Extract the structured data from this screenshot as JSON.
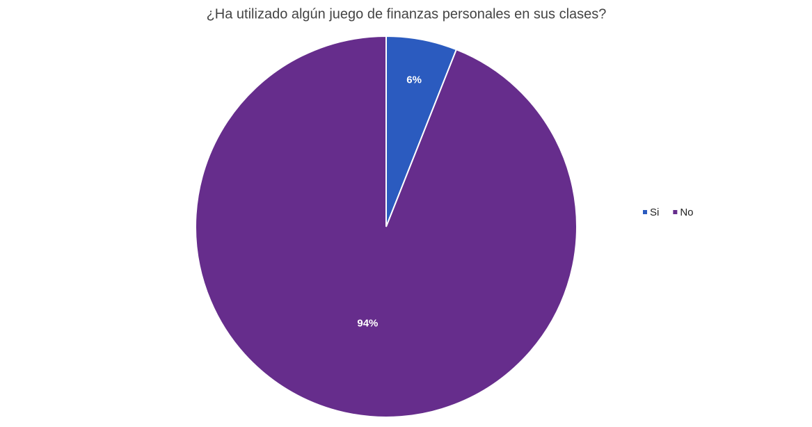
{
  "chart_data": {
    "type": "pie",
    "title": "¿Ha utilizado algún juego de finanzas personales en sus clases?",
    "categories": [
      "Si",
      "No"
    ],
    "values": [
      6,
      94
    ],
    "value_labels": [
      "6%",
      "94%"
    ],
    "colors": [
      "#2b5bbf",
      "#662d8c"
    ],
    "legend": "right"
  }
}
